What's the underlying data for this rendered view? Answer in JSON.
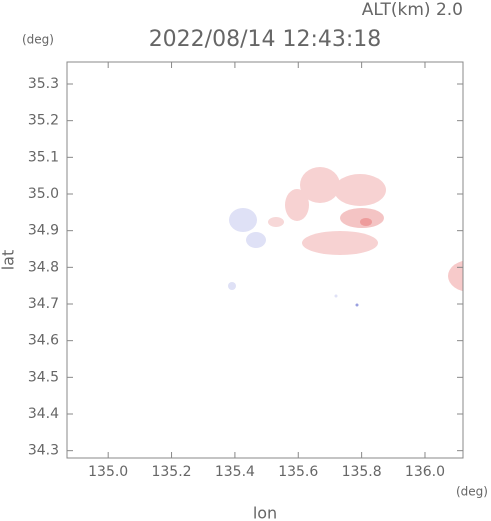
{
  "chart_data": {
    "type": "radar-map",
    "title": "2022/08/14 12:43:18",
    "subtitle": "ALT(km) 2.0",
    "x_label": "lon",
    "y_label": "lat",
    "x_unit": "(deg)",
    "y_unit": "(deg)",
    "xlim": [
      134.87,
      136.12
    ],
    "ylim": [
      34.28,
      35.36
    ],
    "xticks": [
      {
        "value": 135,
        "label": "135.0"
      },
      135.2,
      135.4,
      135.6,
      135.8,
      {
        "value": 136,
        "label": "136.0"
      }
    ],
    "yticks": [
      34.3,
      34.4,
      34.5,
      34.6,
      34.7,
      34.8,
      34.9,
      {
        "value": 35,
        "label": "35.0"
      },
      35.1,
      35.2,
      35.3
    ]
  }
}
